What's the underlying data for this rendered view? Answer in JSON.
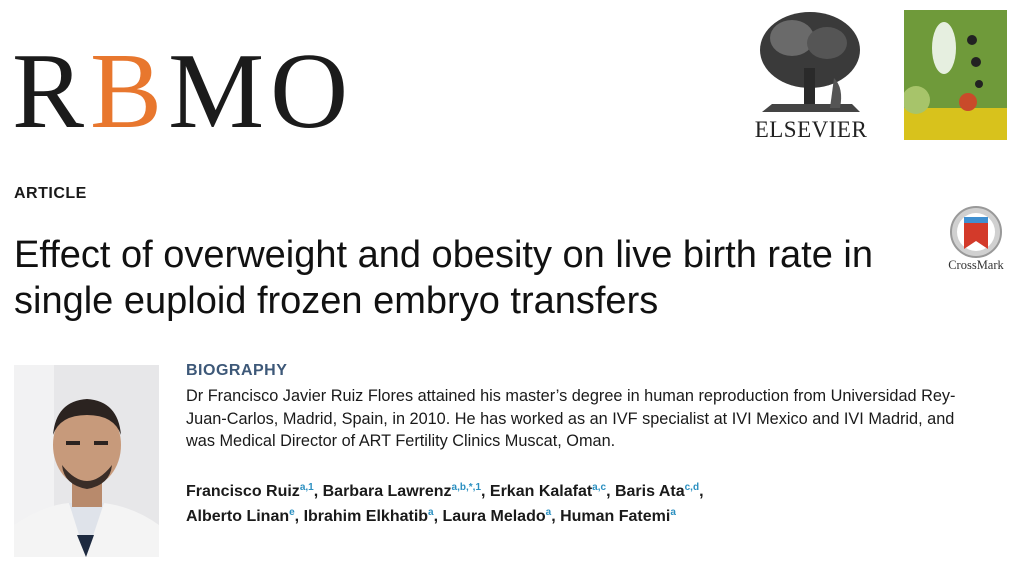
{
  "header": {
    "journal": "RBMO",
    "publisher": "ELSEVIER",
    "crossmark": "CrossMark"
  },
  "section": "ARTICLE",
  "title": "Effect of overweight and obesity on live birth rate in single euploid frozen embryo transfers",
  "biography": {
    "heading": "BIOGRAPHY",
    "text": "Dr Francisco Javier Ruiz Flores attained his master’s degree in human reproduction from Universidad Rey-Juan-Carlos, Madrid, Spain, in 2010. He has worked as an IVF specialist at IVI Mexico and IVI Madrid, and was Medical Director of ART Fertility Clinics Muscat, Oman."
  },
  "authors": [
    {
      "name": "Francisco Ruiz",
      "affiliations": "a,1"
    },
    {
      "name": "Barbara Lawrenz",
      "affiliations": "a,b,*,1"
    },
    {
      "name": "Erkan Kalafat",
      "affiliations": "a,c"
    },
    {
      "name": "Baris Ata",
      "affiliations": "c,d"
    },
    {
      "name": "Alberto Linan",
      "affiliations": "e"
    },
    {
      "name": "Ibrahim Elkhatib",
      "affiliations": "a"
    },
    {
      "name": "Laura Melado",
      "affiliations": "a"
    },
    {
      "name": "Human Fatemi",
      "affiliations": "a"
    }
  ]
}
